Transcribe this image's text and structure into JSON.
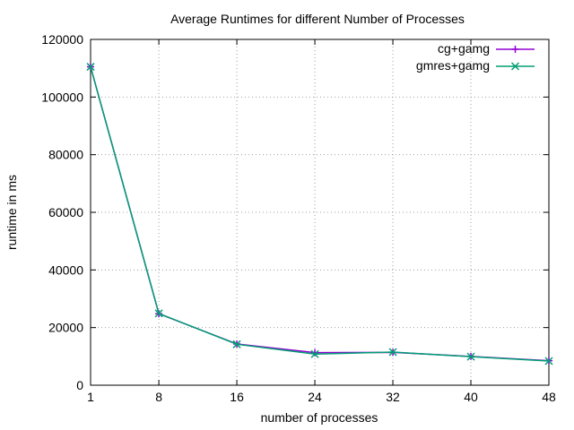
{
  "chart_data": {
    "type": "line",
    "title": "Average Runtimes for different Number of Processes",
    "xlabel": "number of processes",
    "ylabel": "runtime in ms",
    "xlim": [
      1,
      48
    ],
    "ylim": [
      0,
      120000
    ],
    "xticks": [
      1,
      8,
      16,
      24,
      32,
      40,
      48
    ],
    "yticks": [
      0,
      20000,
      40000,
      60000,
      80000,
      100000,
      120000
    ],
    "grid": true,
    "legend_position": "top-right",
    "x": [
      1,
      8,
      16,
      24,
      32,
      40,
      48
    ],
    "series": [
      {
        "name": "cg+gamg",
        "color": "#9400d3",
        "marker": "plus",
        "values": [
          110500,
          24800,
          14300,
          11300,
          11400,
          10000,
          8500
        ]
      },
      {
        "name": "gmres+gamg",
        "color": "#009e73",
        "marker": "cross",
        "values": [
          110500,
          24900,
          14200,
          10800,
          11500,
          9900,
          8400
        ]
      }
    ]
  }
}
